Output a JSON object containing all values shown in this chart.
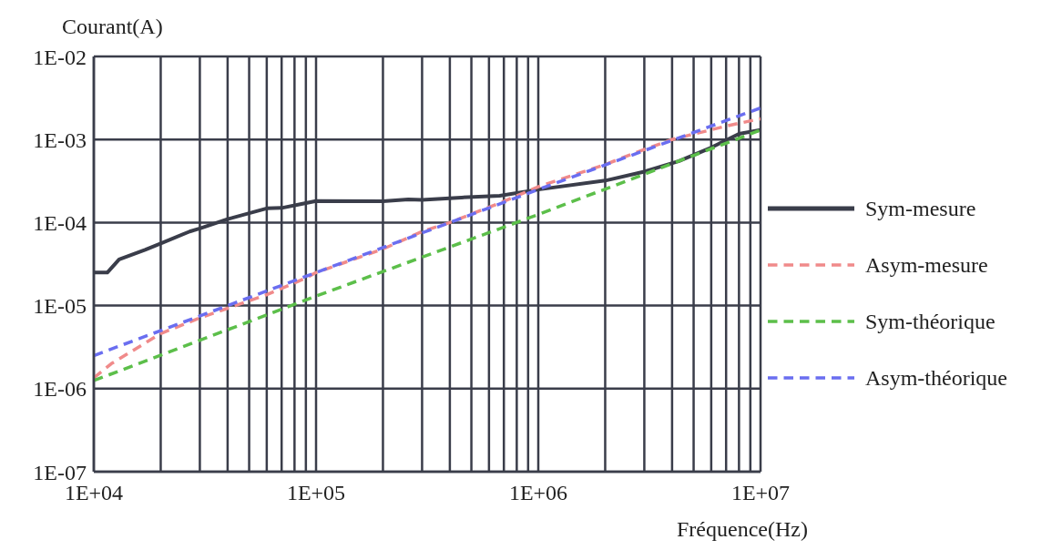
{
  "chart_data": {
    "type": "line",
    "xlabel": "Fréquence(Hz)",
    "ylabel": "Courant(A)",
    "log": "xy",
    "grid": true,
    "legend": "right",
    "marker": "none",
    "xlim": [
      10000,
      10000000
    ],
    "ylim": [
      1e-07,
      0.01
    ],
    "xticks": [
      {
        "value": 10000,
        "label": "1E+04"
      },
      {
        "value": 20000,
        "label": null
      },
      {
        "value": 30000,
        "label": null
      },
      {
        "value": 40000,
        "label": null
      },
      {
        "value": 50000,
        "label": null
      },
      {
        "value": 60000,
        "label": null
      },
      {
        "value": 70000,
        "label": null
      },
      {
        "value": 80000,
        "label": null
      },
      {
        "value": 90000,
        "label": null
      },
      {
        "value": 100000,
        "label": "1E+05"
      },
      {
        "value": 200000,
        "label": null
      },
      {
        "value": 300000,
        "label": null
      },
      {
        "value": 400000,
        "label": null
      },
      {
        "value": 500000,
        "label": null
      },
      {
        "value": 600000,
        "label": null
      },
      {
        "value": 700000,
        "label": null
      },
      {
        "value": 800000,
        "label": null
      },
      {
        "value": 900000,
        "label": null
      },
      {
        "value": 1000000,
        "label": "1E+06"
      },
      {
        "value": 2000000,
        "label": null
      },
      {
        "value": 3000000,
        "label": null
      },
      {
        "value": 4000000,
        "label": null
      },
      {
        "value": 5000000,
        "label": null
      },
      {
        "value": 6000000,
        "label": null
      },
      {
        "value": 7000000,
        "label": null
      },
      {
        "value": 8000000,
        "label": null
      },
      {
        "value": 9000000,
        "label": null
      },
      {
        "value": 10000000,
        "label": "1E+07"
      }
    ],
    "yticks": [
      {
        "value": 1e-07,
        "label": "1E-07"
      },
      {
        "value": 1e-06,
        "label": "1E-06"
      },
      {
        "value": 1e-05,
        "label": "1E-05"
      },
      {
        "value": 0.0001,
        "label": "1E-04"
      },
      {
        "value": 0.001,
        "label": "1E-03"
      },
      {
        "value": 0.01,
        "label": "1E-02"
      }
    ],
    "series": [
      {
        "name": "Sym-mesure",
        "color": "#3a3d4a",
        "line_style": "solid",
        "x": [
          10000,
          11500,
          13000,
          17000,
          20000,
          27000,
          30000,
          40000,
          60000,
          70000,
          85000,
          100000,
          200000,
          260000,
          300000,
          450000,
          670000,
          1000000,
          2000000,
          3000000,
          4300000,
          6000000,
          8000000,
          10000000
        ],
        "values": [
          2.5e-05,
          2.5e-05,
          3.6e-05,
          4.7e-05,
          5.6e-05,
          7.8e-05,
          8.5e-05,
          0.00011,
          0.000148,
          0.00015,
          0.000166,
          0.000182,
          0.00018,
          0.00019,
          0.000188,
          0.0002,
          0.00021,
          0.00025,
          0.00032,
          0.00041,
          0.00055,
          0.0008,
          0.00117,
          0.0013
        ]
      },
      {
        "name": "Asym-mesure",
        "color": "#f08a8a",
        "line_style": "dashed",
        "x": [
          10000,
          12000,
          20000,
          30000,
          40000,
          60000,
          90000,
          100000,
          200000,
          300000,
          400000,
          700000,
          1000000,
          2000000,
          3000000,
          4000000,
          7000000,
          10000000
        ],
        "values": [
          1.35e-06,
          2e-06,
          4.6e-06,
          7.1e-06,
          9.3e-06,
          1.35e-05,
          2.15e-05,
          2.5e-05,
          4.8e-05,
          7.8e-05,
          0.0001,
          0.00018,
          0.00027,
          0.0005,
          0.00076,
          0.001,
          0.00145,
          0.00178
        ]
      },
      {
        "name": "Sym-théorique",
        "color": "#5cbf4a",
        "line_style": "dashed",
        "x": [
          10000,
          100000,
          1000000,
          10000000
        ],
        "values": [
          1.25e-06,
          1.3e-05,
          0.000125,
          0.0013
        ]
      },
      {
        "name": "Asym-théorique",
        "color": "#6a6ef0",
        "line_style": "dashed",
        "x": [
          10000,
          100000,
          1000000,
          10000000
        ],
        "values": [
          2.5e-06,
          2.5e-05,
          0.00025,
          0.0024
        ]
      }
    ]
  }
}
